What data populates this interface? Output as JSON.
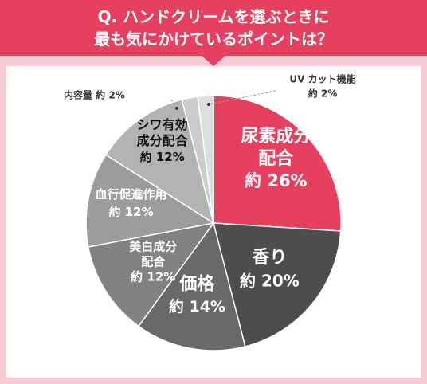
{
  "header": {
    "line1": "Q. ハンドクリームを選ぶときに",
    "line2": "最も気にかけているポイントは？"
  },
  "chart_data": {
    "type": "pie",
    "title": "Q. ハンドクリームを選ぶときに最も気にかけているポイントは？",
    "slices": [
      {
        "label": "尿素成分配合",
        "value": 26,
        "value_label": "約 26%",
        "color": "#e6405e"
      },
      {
        "label": "香り",
        "value": 20,
        "value_label": "約 20%",
        "color": "#4d4d4d"
      },
      {
        "label": "価格",
        "value": 14,
        "value_label": "約 14%",
        "color": "#696969"
      },
      {
        "label": "美白成分配合",
        "value": 12,
        "value_label": "約 12%",
        "color": "#828282"
      },
      {
        "label": "血行促進作用",
        "value": 12,
        "value_label": "約 12%",
        "color": "#9c9c9c"
      },
      {
        "label": "シワ有効成分配合",
        "value": 12,
        "value_label": "約 12%",
        "color": "#b3b3b3"
      },
      {
        "label": "内容量",
        "value": 2,
        "value_label": "約 2%",
        "color": "#cccccc"
      },
      {
        "label": "UV カット機能",
        "value": 2,
        "value_label": "約 2%",
        "color": "#dedede"
      }
    ]
  }
}
